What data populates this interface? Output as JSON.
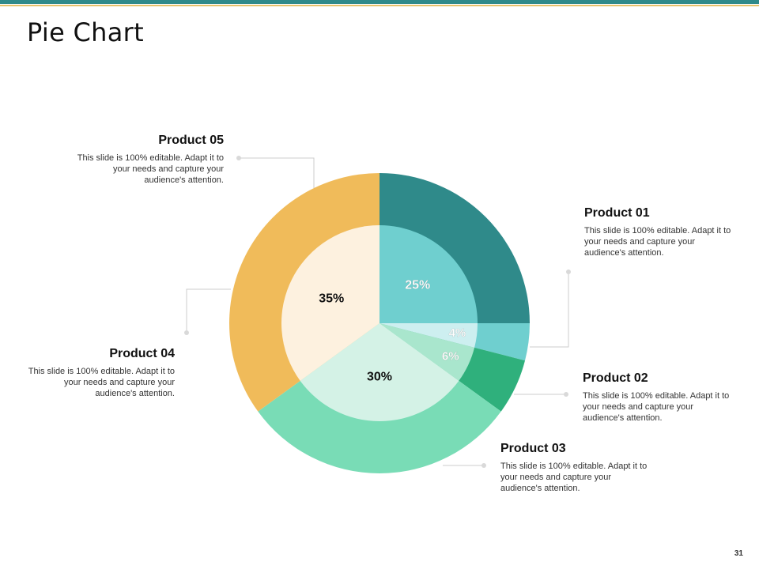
{
  "title": "Pie Chart",
  "page_number": "31",
  "colors": {
    "top_bar": "#2f8a8a",
    "top_bar_accent": "#e6c26a"
  },
  "chart_data": {
    "type": "pie",
    "title": "",
    "outer_ring": [
      {
        "name": "Product 01",
        "value": 25,
        "color": "#2f8a8a"
      },
      {
        "name": "Product 02",
        "value": 4,
        "color": "#6fcfcf"
      },
      {
        "name": "Product 02",
        "value": 6,
        "color": "#2fb07c"
      },
      {
        "name": "Product 03",
        "value": 30,
        "color": "#79dcb6"
      },
      {
        "name": "Product 04",
        "value": 35,
        "color": "#f0bb5a"
      }
    ],
    "inner_pie": [
      {
        "name": "Product 01",
        "value": 25,
        "label": "25%",
        "color": "#6fcfcf",
        "label_color": "#ffffff"
      },
      {
        "name": "Product 02",
        "value": 4,
        "label": "4%",
        "color": "#cdeff0",
        "label_color": "#ffffff"
      },
      {
        "name": "Product 02",
        "value": 6,
        "label": "6%",
        "color": "#a9e6cd",
        "label_color": "#ffffff"
      },
      {
        "name": "Product 03",
        "value": 30,
        "label": "30%",
        "color": "#d4f2e6",
        "label_color": "#111111"
      },
      {
        "name": "Product 04",
        "value": 35,
        "label": "35%",
        "color": "#fdf1df",
        "label_color": "#111111"
      }
    ]
  },
  "products": [
    {
      "name": "Product 01",
      "description": "This slide is 100% editable. Adapt it to your needs and capture your audience's attention."
    },
    {
      "name": "Product 02",
      "description": "This slide is 100% editable. Adapt it to your needs and capture your audience's attention."
    },
    {
      "name": "Product 03",
      "description": "This slide is 100% editable. Adapt it to your needs and capture your audience's attention."
    },
    {
      "name": "Product 04",
      "description": "This slide is 100% editable. Adapt it to your needs and capture your audience's attention."
    },
    {
      "name": "Product 05",
      "description": "This slide is 100% editable. Adapt it to your needs and capture your audience's attention."
    }
  ]
}
